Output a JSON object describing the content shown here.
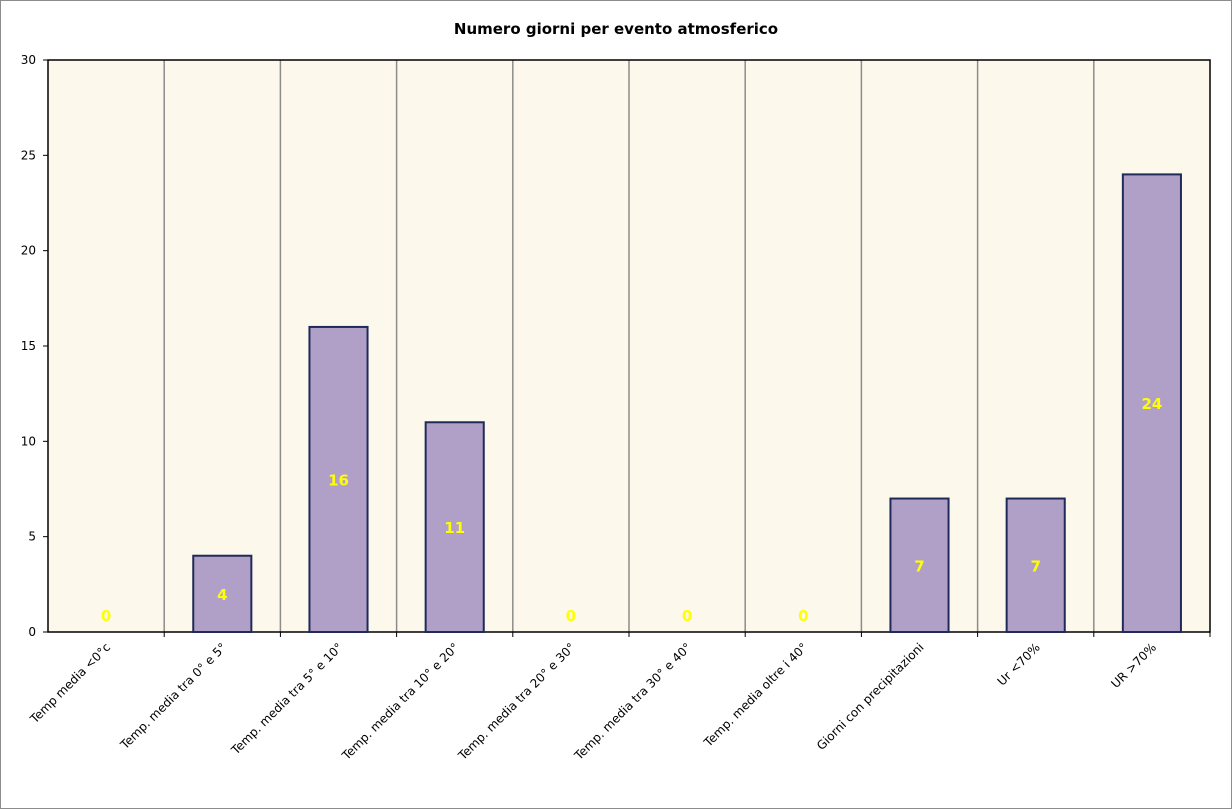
{
  "chart_data": {
    "type": "bar",
    "title": "Numero giorni  per evento atmosferico",
    "xlabel": "",
    "ylabel": "",
    "ylim": [
      0,
      30
    ],
    "yticks": [
      0,
      5,
      10,
      15,
      20,
      25,
      30
    ],
    "grid": "vertical",
    "legend": "none",
    "categories": [
      "Temp media <0°c",
      "Temp. media tra 0° e 5°",
      "Temp. media tra 5° e 10°",
      "Temp. media tra 10° e 20°",
      "Temp. media tra 20° e 30°",
      "Temp. media tra 30° e 40°",
      "Temp. media oltre i 40°",
      "Giorni con precipitazioni",
      "Ur  <70%",
      "UR >70%"
    ],
    "values": [
      0,
      4,
      16,
      11,
      0,
      0,
      0,
      7,
      7,
      24
    ],
    "colors": {
      "bar": "#b0a0c8",
      "bar_border": "#1f2a5a",
      "plot_bg": "#fdf8ec",
      "gridline": "#8c8c8c",
      "data_label": "#ffff00"
    }
  }
}
